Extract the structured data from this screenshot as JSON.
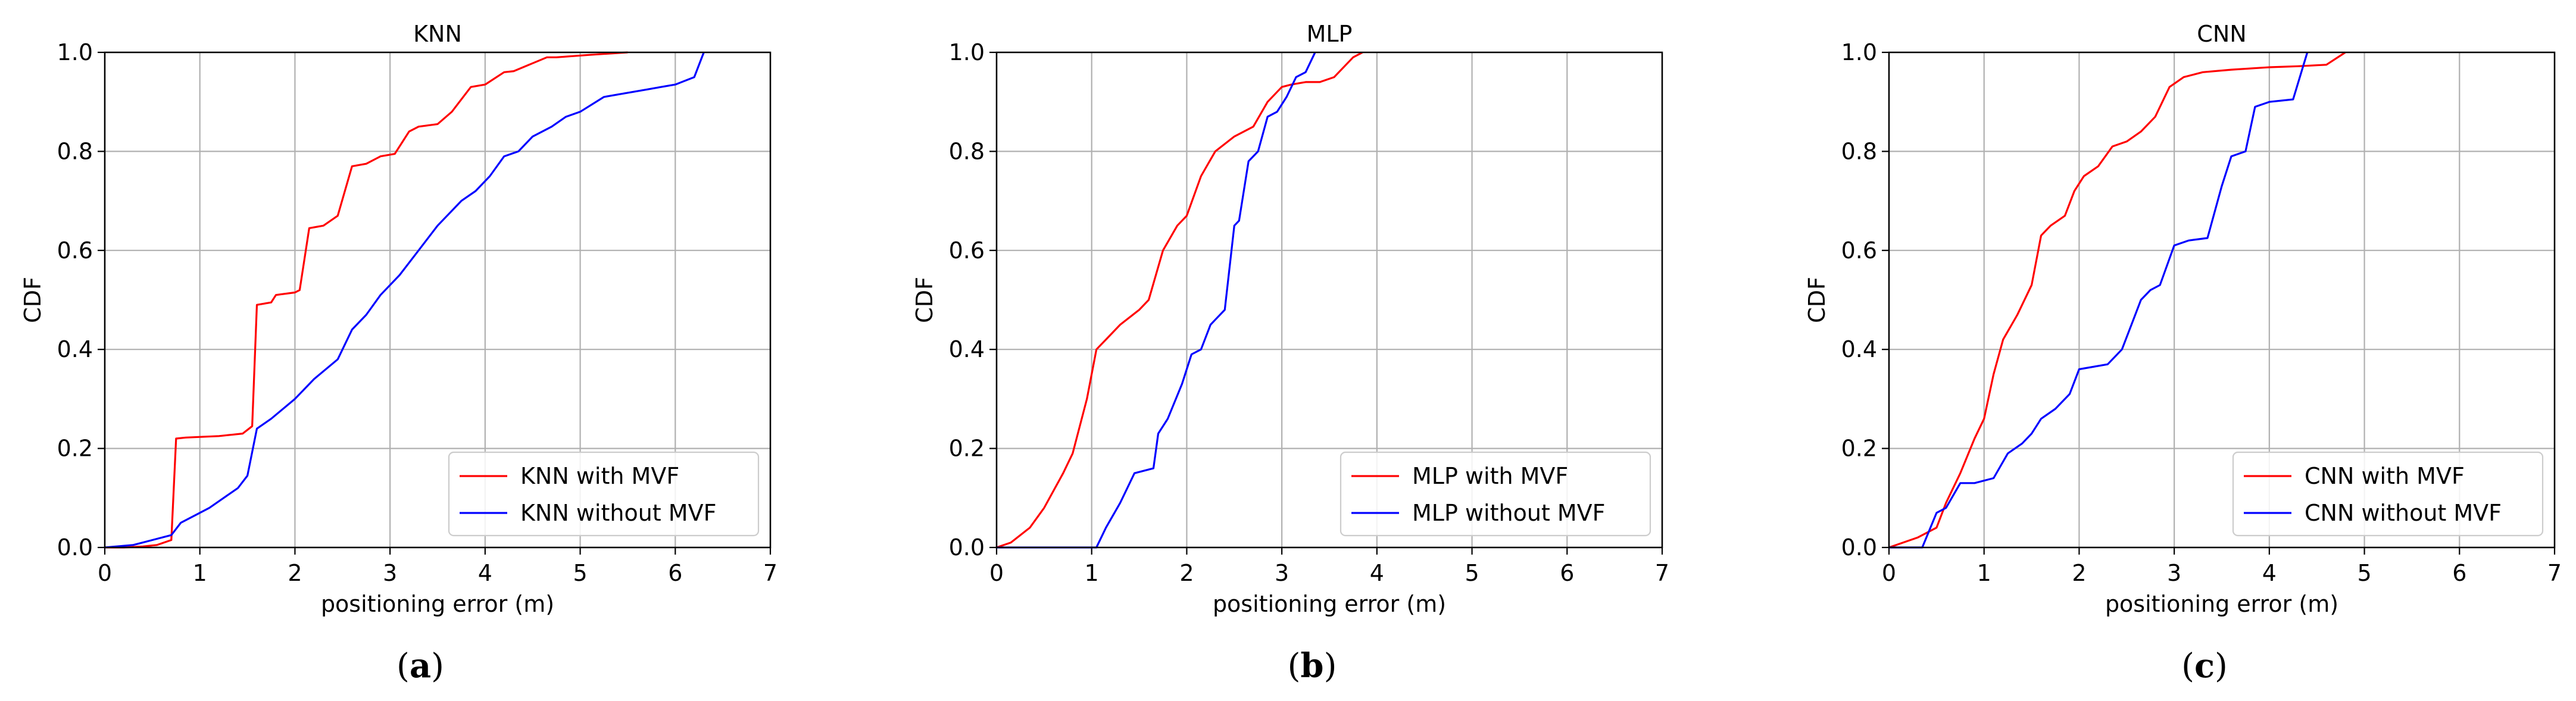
{
  "figure": {
    "panels": [
      {
        "label_prefix": "(",
        "label_letter": "a",
        "label_suffix": ")"
      },
      {
        "label_prefix": "(",
        "label_letter": "b",
        "label_suffix": ")"
      },
      {
        "label_prefix": "(",
        "label_letter": "c",
        "label_suffix": ")"
      }
    ]
  },
  "chart_data": [
    {
      "type": "line",
      "title": "KNN",
      "xlabel": "positioning error (m)",
      "ylabel": "CDF",
      "xlim": [
        0,
        7
      ],
      "ylim": [
        0,
        1
      ],
      "x_ticks": [
        "0",
        "1",
        "2",
        "3",
        "4",
        "5",
        "6",
        "7"
      ],
      "y_ticks": [
        "0.0",
        "0.2",
        "0.4",
        "0.6",
        "0.8",
        "1.0"
      ],
      "grid": true,
      "legend_position": "lower-right",
      "series": [
        {
          "name": "KNN with MVF",
          "color": "#ff0000",
          "x": [
            0,
            0.2,
            0.4,
            0.55,
            0.7,
            0.75,
            0.85,
            1.2,
            1.35,
            1.45,
            1.55,
            1.6,
            1.75,
            1.8,
            2.0,
            2.05,
            2.15,
            2.3,
            2.45,
            2.6,
            2.75,
            2.9,
            3.05,
            3.2,
            3.3,
            3.5,
            3.65,
            3.85,
            4.0,
            4.2,
            4.3,
            4.65,
            4.75,
            5.1,
            5.5
          ],
          "y": [
            0,
            0.0,
            0.002,
            0.005,
            0.015,
            0.22,
            0.222,
            0.225,
            0.228,
            0.23,
            0.245,
            0.49,
            0.495,
            0.51,
            0.515,
            0.52,
            0.645,
            0.65,
            0.67,
            0.77,
            0.775,
            0.79,
            0.795,
            0.84,
            0.85,
            0.855,
            0.88,
            0.93,
            0.935,
            0.96,
            0.962,
            0.99,
            0.99,
            0.995,
            1.0
          ]
        },
        {
          "name": "KNN without MVF",
          "color": "#0000ff",
          "x": [
            0,
            0.3,
            0.5,
            0.7,
            0.8,
            1.0,
            1.1,
            1.25,
            1.4,
            1.5,
            1.6,
            1.75,
            2.0,
            2.2,
            2.45,
            2.6,
            2.75,
            2.9,
            3.1,
            3.3,
            3.5,
            3.75,
            3.9,
            4.05,
            4.2,
            4.35,
            4.5,
            4.7,
            4.85,
            5.0,
            5.25,
            5.4,
            5.7,
            5.85,
            6.0,
            6.2,
            6.3
          ],
          "y": [
            0,
            0.005,
            0.015,
            0.025,
            0.05,
            0.07,
            0.08,
            0.1,
            0.12,
            0.145,
            0.24,
            0.26,
            0.3,
            0.34,
            0.38,
            0.44,
            0.47,
            0.51,
            0.55,
            0.6,
            0.65,
            0.7,
            0.72,
            0.75,
            0.79,
            0.8,
            0.83,
            0.85,
            0.87,
            0.88,
            0.91,
            0.915,
            0.925,
            0.93,
            0.935,
            0.95,
            1.0
          ]
        }
      ]
    },
    {
      "type": "line",
      "title": "MLP",
      "xlabel": "positioning error (m)",
      "ylabel": "CDF",
      "xlim": [
        0,
        7
      ],
      "ylim": [
        0,
        1
      ],
      "x_ticks": [
        "0",
        "1",
        "2",
        "3",
        "4",
        "5",
        "6",
        "7"
      ],
      "y_ticks": [
        "0.0",
        "0.2",
        "0.4",
        "0.6",
        "0.8",
        "1.0"
      ],
      "grid": true,
      "legend_position": "lower-right",
      "series": [
        {
          "name": "MLP with MVF",
          "color": "#ff0000",
          "x": [
            0,
            0.15,
            0.35,
            0.5,
            0.7,
            0.8,
            0.95,
            1.05,
            1.15,
            1.3,
            1.5,
            1.6,
            1.75,
            1.9,
            2.0,
            2.15,
            2.3,
            2.5,
            2.7,
            2.85,
            3.0,
            3.1,
            3.25,
            3.4,
            3.55,
            3.75,
            3.85
          ],
          "y": [
            0,
            0.01,
            0.04,
            0.08,
            0.15,
            0.19,
            0.3,
            0.4,
            0.42,
            0.45,
            0.48,
            0.5,
            0.6,
            0.65,
            0.67,
            0.75,
            0.8,
            0.83,
            0.85,
            0.9,
            0.93,
            0.935,
            0.94,
            0.94,
            0.95,
            0.99,
            1.0
          ]
        },
        {
          "name": "MLP without MVF",
          "color": "#0000ff",
          "x": [
            0,
            1.05,
            1.15,
            1.3,
            1.45,
            1.65,
            1.7,
            1.8,
            1.95,
            2.05,
            2.15,
            2.25,
            2.3,
            2.4,
            2.5,
            2.55,
            2.65,
            2.75,
            2.85,
            2.95,
            3.05,
            3.15,
            3.25,
            3.35
          ],
          "y": [
            0,
            0.0,
            0.04,
            0.09,
            0.15,
            0.16,
            0.23,
            0.26,
            0.33,
            0.39,
            0.4,
            0.45,
            0.46,
            0.48,
            0.65,
            0.66,
            0.78,
            0.8,
            0.87,
            0.88,
            0.91,
            0.95,
            0.96,
            1.0
          ]
        }
      ]
    },
    {
      "type": "line",
      "title": "CNN",
      "xlabel": "positioning error (m)",
      "ylabel": "CDF",
      "xlim": [
        0,
        7
      ],
      "ylim": [
        0,
        1
      ],
      "x_ticks": [
        "0",
        "1",
        "2",
        "3",
        "4",
        "5",
        "6",
        "7"
      ],
      "y_ticks": [
        "0.0",
        "0.2",
        "0.4",
        "0.6",
        "0.8",
        "1.0"
      ],
      "grid": true,
      "legend_position": "lower-right",
      "series": [
        {
          "name": "CNN with MVF",
          "color": "#ff0000",
          "x": [
            0,
            0.3,
            0.5,
            0.6,
            0.75,
            0.9,
            1.0,
            1.1,
            1.2,
            1.35,
            1.5,
            1.6,
            1.7,
            1.85,
            1.95,
            2.05,
            2.2,
            2.35,
            2.5,
            2.65,
            2.8,
            2.95,
            3.1,
            3.3,
            3.6,
            4.0,
            4.3,
            4.6,
            4.8
          ],
          "y": [
            0,
            0.02,
            0.04,
            0.09,
            0.15,
            0.22,
            0.26,
            0.35,
            0.42,
            0.47,
            0.53,
            0.63,
            0.65,
            0.67,
            0.72,
            0.75,
            0.77,
            0.81,
            0.82,
            0.84,
            0.87,
            0.93,
            0.95,
            0.96,
            0.965,
            0.97,
            0.972,
            0.975,
            1.0
          ]
        },
        {
          "name": "CNN without MVF",
          "color": "#0000ff",
          "x": [
            0,
            0.35,
            0.5,
            0.6,
            0.75,
            0.9,
            1.1,
            1.25,
            1.4,
            1.5,
            1.6,
            1.75,
            1.9,
            2.0,
            2.3,
            2.45,
            2.55,
            2.65,
            2.75,
            2.85,
            3.0,
            3.15,
            3.35,
            3.5,
            3.6,
            3.75,
            3.85,
            4.0,
            4.25,
            4.4
          ],
          "y": [
            0,
            0.0,
            0.07,
            0.08,
            0.13,
            0.13,
            0.14,
            0.19,
            0.21,
            0.23,
            0.26,
            0.28,
            0.31,
            0.36,
            0.37,
            0.4,
            0.45,
            0.5,
            0.52,
            0.53,
            0.61,
            0.62,
            0.625,
            0.73,
            0.79,
            0.8,
            0.89,
            0.9,
            0.905,
            1.0
          ]
        }
      ]
    }
  ]
}
